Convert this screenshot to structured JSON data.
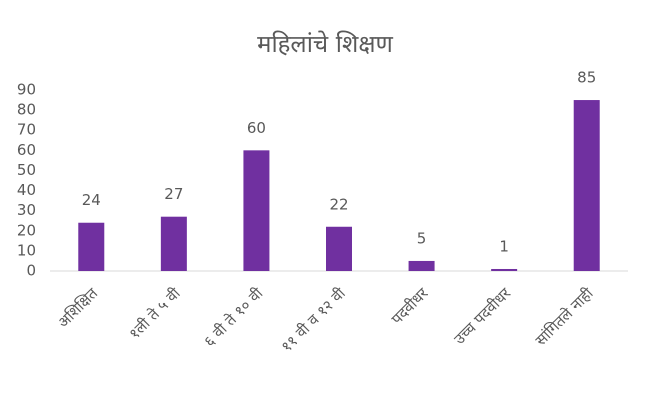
{
  "chart_data": {
    "type": "bar",
    "title": "महिलांचे शिक्षण",
    "categories": [
      "अशिक्षित",
      "१ली ते ५ वी",
      "६ वी ते १० वी",
      "११ वी व १२ वी",
      "पदवीधर",
      "उच्च पदवीधर",
      "सांगितले नाही"
    ],
    "values": [
      24,
      27,
      60,
      22,
      5,
      1,
      85
    ],
    "color": "#7030a0",
    "ylim": [
      0,
      90
    ],
    "yticks": [
      0,
      10,
      20,
      30,
      40,
      50,
      60,
      70,
      80,
      90
    ],
    "grid": false
  }
}
